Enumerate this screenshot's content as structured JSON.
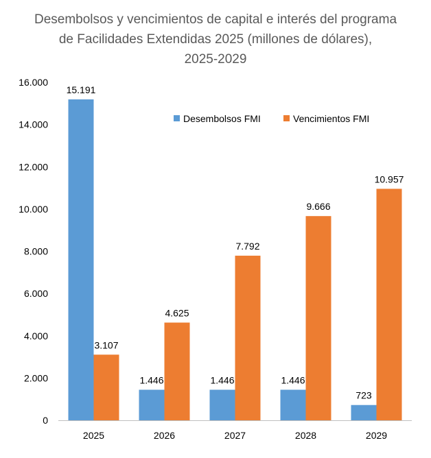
{
  "chart_data": {
    "type": "bar",
    "title_lines": [
      "Desembolsos y vencimientos de capital e interés del programa",
      "de Facilidades Extendidas 2025 (millones de dólares),",
      "2025-2029"
    ],
    "categories": [
      "2025",
      "2026",
      "2027",
      "2028",
      "2029"
    ],
    "series": [
      {
        "name": "Desembolsos FMI",
        "color": "#5B9BD5",
        "values": [
          15191,
          1446,
          1446,
          1446,
          723
        ],
        "labels": [
          "15.191",
          "1.446",
          "1.446",
          "1.446",
          "723"
        ]
      },
      {
        "name": "Vencimientos FMI",
        "color": "#ED7D31",
        "values": [
          3107,
          4625,
          7792,
          9666,
          10957
        ],
        "labels": [
          "3.107",
          "4.625",
          "7.792",
          "9.666",
          "10.957"
        ]
      }
    ],
    "ylim": [
      0,
      16000
    ],
    "yticks": [
      0,
      2000,
      4000,
      6000,
      8000,
      10000,
      12000,
      14000,
      16000
    ],
    "ytick_labels": [
      "0",
      "2.000",
      "4.000",
      "6.000",
      "8.000",
      "10.000",
      "12.000",
      "14.000",
      "16.000"
    ],
    "xlabel": "",
    "ylabel": "",
    "grid": false,
    "legend_position": "top-right"
  }
}
